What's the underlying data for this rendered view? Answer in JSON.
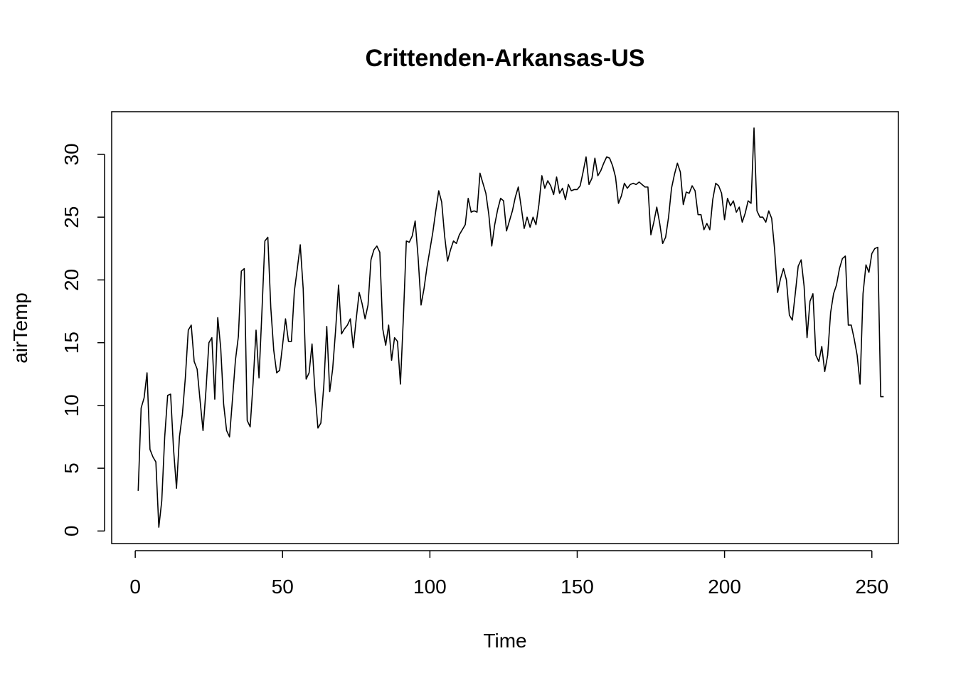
{
  "chart_data": {
    "type": "line",
    "title": "Crittenden-Arkansas-US",
    "xlabel": "Time",
    "ylabel": "airTemp",
    "xlim": [
      -8,
      259
    ],
    "ylim": [
      -1,
      33.4
    ],
    "x_ticks": [
      0,
      50,
      100,
      150,
      200,
      250
    ],
    "y_ticks": [
      0,
      5,
      10,
      15,
      20,
      25,
      30
    ],
    "grid": false,
    "legend": "none",
    "line_color": "#000000",
    "series": [
      {
        "x_start": 1,
        "values": [
          3.2,
          9.8,
          10.6,
          12.6,
          6.5,
          5.9,
          5.5,
          0.3,
          2.4,
          7.5,
          10.8,
          10.9,
          6.5,
          3.4,
          7.5,
          9.3,
          12.2,
          16.0,
          16.4,
          13.5,
          12.9,
          10.4,
          8.0,
          11.2,
          15.0,
          15.4,
          10.5,
          17.0,
          14.6,
          10.1,
          8.0,
          7.5,
          10.5,
          13.6,
          15.5,
          20.7,
          20.9,
          8.8,
          8.3,
          11.8,
          16.0,
          12.2,
          17.5,
          23.1,
          23.4,
          17.8,
          14.4,
          12.6,
          12.8,
          14.8,
          16.9,
          15.1,
          15.1,
          19.1,
          20.9,
          22.8,
          19.3,
          12.1,
          12.6,
          14.9,
          11.1,
          8.2,
          8.6,
          11.6,
          16.3,
          11.1,
          12.9,
          16.0,
          19.6,
          15.7,
          16.1,
          16.4,
          16.9,
          14.6,
          16.9,
          19.0,
          18.1,
          16.9,
          18.0,
          21.6,
          22.4,
          22.7,
          22.2,
          16.1,
          14.8,
          16.4,
          13.6,
          15.4,
          15.1,
          11.7,
          17.0,
          23.1,
          23.0,
          23.5,
          24.7,
          21.8,
          18.0,
          19.3,
          21.0,
          22.4,
          23.8,
          25.5,
          27.1,
          26.2,
          23.5,
          21.5,
          22.4,
          23.1,
          22.9,
          23.6,
          24.0,
          24.4,
          26.5,
          25.4,
          25.5,
          25.4,
          28.5,
          27.7,
          26.9,
          25.2,
          22.7,
          24.4,
          25.6,
          26.5,
          26.3,
          23.9,
          24.7,
          25.5,
          26.6,
          27.4,
          25.8,
          24.1,
          25.0,
          24.2,
          25.0,
          24.4,
          26.0,
          28.3,
          27.3,
          27.9,
          27.5,
          26.8,
          28.2,
          26.9,
          27.3,
          26.4,
          27.6,
          27.1,
          27.2,
          27.2,
          27.5,
          28.6,
          29.8,
          27.6,
          28.1,
          29.7,
          28.3,
          28.7,
          29.3,
          29.8,
          29.7,
          29.1,
          28.2,
          26.1,
          26.7,
          27.7,
          27.3,
          27.6,
          27.7,
          27.6,
          27.8,
          27.6,
          27.4,
          27.4,
          23.6,
          24.6,
          25.8,
          24.5,
          22.9,
          23.4,
          25.0,
          27.3,
          28.4,
          29.3,
          28.6,
          26.0,
          27.0,
          26.9,
          27.5,
          27.1,
          25.2,
          25.2,
          24.0,
          24.5,
          24.0,
          26.4,
          27.7,
          27.5,
          26.9,
          24.8,
          26.5,
          25.9,
          26.3,
          25.4,
          25.8,
          24.6,
          25.3,
          26.3,
          26.1,
          32.1,
          25.5,
          25.0,
          25.0,
          24.6,
          25.5,
          24.9,
          22.4,
          19.0,
          20.1,
          20.9,
          20.0,
          17.2,
          16.8,
          18.9,
          21.1,
          21.6,
          19.5,
          15.4,
          18.3,
          18.9,
          14.0,
          13.5,
          14.7,
          12.7,
          14.0,
          17.4,
          18.9,
          19.6,
          20.9,
          21.7,
          21.9,
          16.4,
          16.4,
          15.3,
          14.0,
          11.7,
          18.9,
          21.2,
          20.6,
          22.1,
          22.5,
          22.6,
          10.7,
          10.7
        ]
      }
    ]
  }
}
